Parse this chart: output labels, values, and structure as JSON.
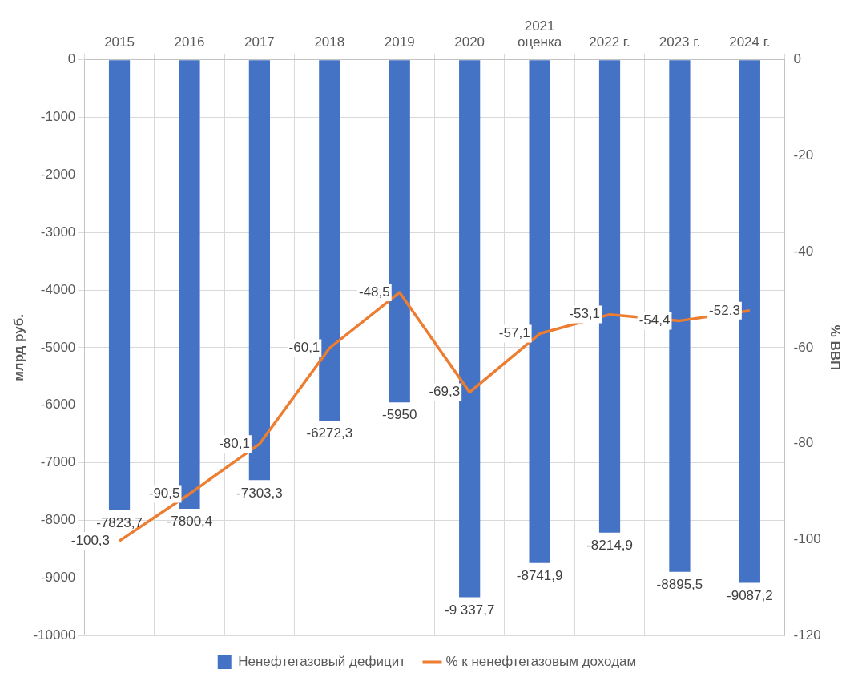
{
  "chart_data": {
    "type": "bar",
    "ylabel": "млрд руб.",
    "y2label": "% ВВП",
    "categories": [
      "2015",
      "2016",
      "2017",
      "2018",
      "2019",
      "2020",
      "2021\nоценка",
      "2022 г.",
      "2023 г.",
      "2024 г."
    ],
    "series": [
      {
        "name": "Ненефтегазовый дефицит",
        "color": "#4472c4",
        "values": [
          -7823.7,
          -7800.4,
          -7303.3,
          -6272.3,
          -5950,
          -9337.7,
          -8741.9,
          -8214.9,
          -8895.5,
          -9087.2
        ],
        "value_labels": [
          "-7823,7",
          "-7800,4",
          "-7303,3",
          "-6272,3",
          "-5950",
          "-9 337,7",
          "-8741,9",
          "-8214,9",
          "-8895,5",
          "-9087,2"
        ]
      },
      {
        "name": "% к ненефтегазовым доходам",
        "type": "line",
        "axis": "y2",
        "color": "#ed7d31",
        "values": [
          -100.3,
          -90.5,
          -80.1,
          -60.1,
          -48.5,
          -69.3,
          -57.1,
          -53.1,
          -54.4,
          -52.3
        ],
        "value_labels": [
          "-100,3",
          "-90,5",
          "-80,1",
          "-60,1",
          "-48,5",
          "-69,3",
          "-57,1",
          "-53,1",
          "-54,4",
          "-52,3"
        ]
      }
    ],
    "ylim": [
      -10000,
      0
    ],
    "yticks": [
      0,
      -1000,
      -2000,
      -3000,
      -4000,
      -5000,
      -6000,
      -7000,
      -8000,
      -9000,
      -10000
    ],
    "y2lim": [
      -120,
      0
    ],
    "y2ticks": [
      0,
      -20,
      -40,
      -60,
      -80,
      -100,
      -120
    ],
    "grid": true,
    "legend": "bottom",
    "marker": "none",
    "line_style": "solid"
  }
}
